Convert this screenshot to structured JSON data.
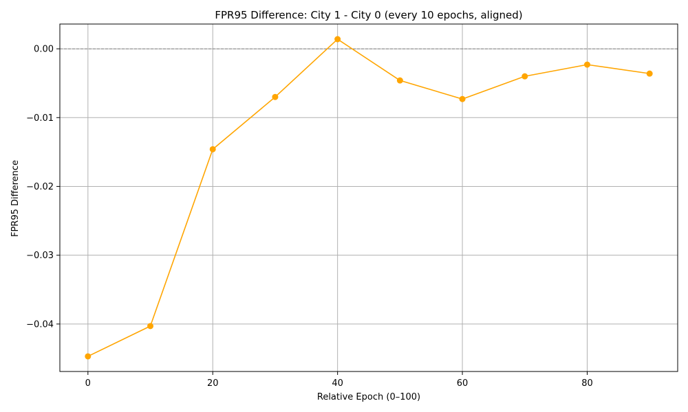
{
  "chart_data": {
    "type": "line",
    "title": "FPR95 Difference: City 1 - City 0 (every 10 epochs, aligned)",
    "xlabel": "Relative Epoch (0–100)",
    "ylabel": "FPR95 Difference",
    "x": [
      0,
      10,
      20,
      30,
      40,
      50,
      60,
      70,
      80,
      90
    ],
    "series": [
      {
        "values": [
          -0.0447,
          -0.0403,
          -0.0146,
          -0.007,
          0.0014,
          -0.0046,
          -0.0073,
          -0.004,
          -0.0023,
          -0.0036
        ],
        "color": "#ffa500",
        "marker": "circle"
      }
    ],
    "xlim": [
      -4.5,
      94.5
    ],
    "ylim": [
      -0.0469,
      0.0036
    ],
    "xticks": [
      0,
      20,
      40,
      60,
      80
    ],
    "xtick_labels": [
      "0",
      "20",
      "40",
      "60",
      "80"
    ],
    "yticks": [
      0.0,
      -0.01,
      -0.02,
      -0.03,
      -0.04
    ],
    "ytick_labels": [
      "0.00",
      "−0.01",
      "−0.02",
      "−0.03",
      "−0.04"
    ],
    "reference_line": {
      "y": 0,
      "style": "dashed",
      "color": "#808080"
    },
    "grid": true,
    "colors": {
      "grid": "#b0b0b0",
      "axes": "#000000"
    }
  }
}
